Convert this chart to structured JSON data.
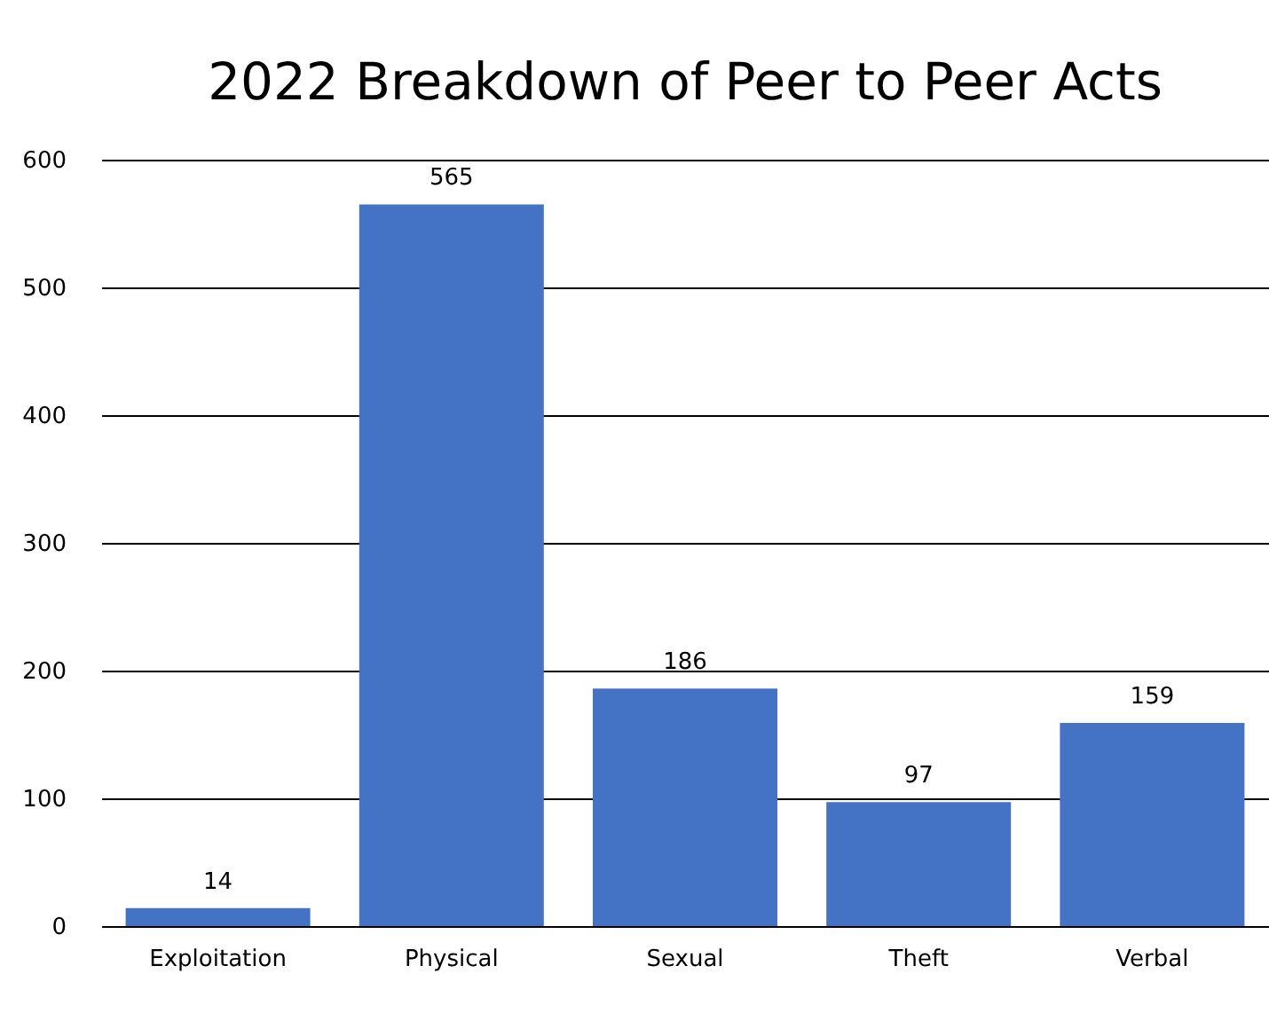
{
  "chart_data": {
    "type": "bar",
    "title": "2022 Breakdown of Peer to Peer Acts",
    "categories": [
      "Exploitation",
      "Physical",
      "Sexual",
      "Theft",
      "Verbal"
    ],
    "values": [
      14,
      565,
      186,
      97,
      159
    ],
    "color": "#4472c4",
    "ylim": [
      0,
      600
    ],
    "yticks": [
      0,
      100,
      200,
      300,
      400,
      500,
      600
    ],
    "grid": "y",
    "data_labels": true
  }
}
